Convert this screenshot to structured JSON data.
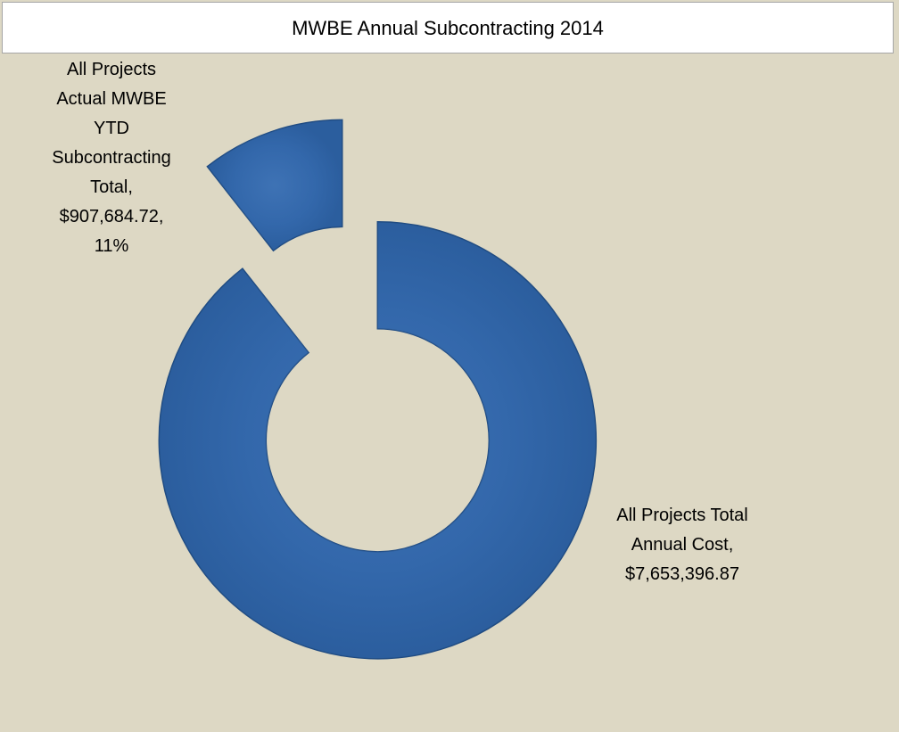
{
  "chart_data": {
    "type": "donut",
    "title": "MWBE Annual Subcontracting 2014",
    "labels": [
      "All Projects Total Annual Cost, $7,653,396.87",
      "All Projects Actual MWBE YTD Subcontracting Total, $907,684.72, 11%"
    ],
    "values": [
      7653396.87,
      907684.72
    ],
    "colors": [
      "#2f63a6",
      "#2f63a6"
    ]
  }
}
